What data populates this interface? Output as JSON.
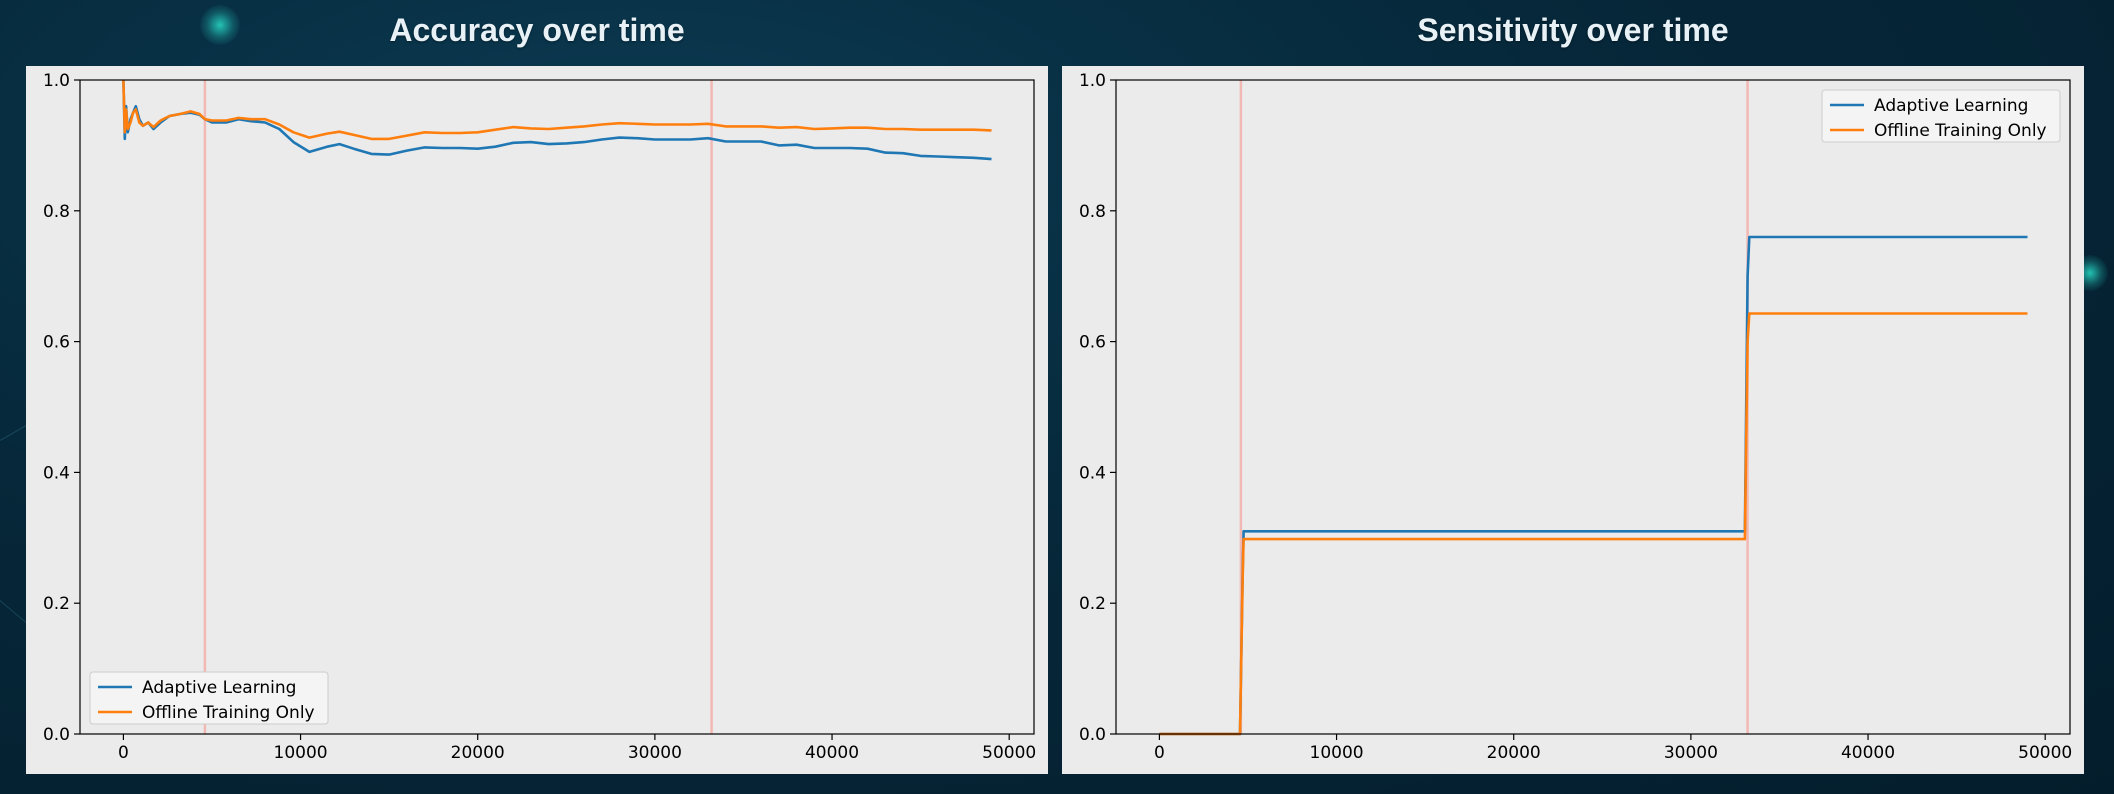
{
  "chart_data": [
    {
      "type": "line",
      "title": "Accuracy over time",
      "xlim": [
        -2450,
        51400
      ],
      "ylim": [
        0,
        1.0
      ],
      "xticks": [
        0,
        10000,
        20000,
        30000,
        40000,
        50000
      ],
      "yticks": [
        0.0,
        0.2,
        0.4,
        0.6,
        0.8,
        1.0
      ],
      "vlines": [
        4600,
        33200
      ],
      "legend": "lower-left",
      "series": [
        {
          "name": "Adaptive Learning",
          "color": "#1f77b4",
          "x": [
            0,
            80,
            150,
            250,
            400,
            550,
            700,
            900,
            1100,
            1400,
            1700,
            2100,
            2600,
            3200,
            3800,
            4300,
            4600,
            5000,
            5800,
            6500,
            7200,
            8000,
            8800,
            9600,
            10500,
            11500,
            12200,
            13000,
            14000,
            15000,
            16000,
            17000,
            18000,
            19000,
            20000,
            21000,
            22000,
            23000,
            24000,
            25000,
            26000,
            27000,
            28000,
            29000,
            30000,
            31000,
            32000,
            33000,
            34000,
            35000,
            36000,
            37000,
            38000,
            39000,
            40000,
            41000,
            42000,
            43000,
            44000,
            45000,
            46000,
            47000,
            48000,
            49000
          ],
          "values": [
            1.0,
            0.91,
            0.96,
            0.92,
            0.94,
            0.95,
            0.96,
            0.94,
            0.93,
            0.935,
            0.925,
            0.935,
            0.945,
            0.948,
            0.95,
            0.947,
            0.94,
            0.935,
            0.935,
            0.94,
            0.937,
            0.935,
            0.925,
            0.905,
            0.89,
            0.898,
            0.902,
            0.895,
            0.887,
            0.886,
            0.892,
            0.897,
            0.896,
            0.896,
            0.895,
            0.898,
            0.904,
            0.905,
            0.902,
            0.903,
            0.905,
            0.909,
            0.912,
            0.911,
            0.909,
            0.909,
            0.909,
            0.911,
            0.906,
            0.906,
            0.906,
            0.9,
            0.901,
            0.896,
            0.896,
            0.896,
            0.895,
            0.889,
            0.888,
            0.884,
            0.883,
            0.882,
            0.881,
            0.879
          ]
        },
        {
          "name": "Offline Training Only",
          "color": "#ff7f0e",
          "x": [
            0,
            80,
            150,
            250,
            400,
            550,
            700,
            900,
            1100,
            1400,
            1700,
            2100,
            2600,
            3200,
            3800,
            4300,
            4600,
            5000,
            5800,
            6500,
            7200,
            8000,
            8800,
            9600,
            10500,
            11500,
            12200,
            13000,
            14000,
            15000,
            16000,
            17000,
            18000,
            19000,
            20000,
            21000,
            22000,
            23000,
            24000,
            25000,
            26000,
            27000,
            28000,
            29000,
            30000,
            31000,
            32000,
            33000,
            34000,
            35000,
            36000,
            37000,
            38000,
            39000,
            40000,
            41000,
            42000,
            43000,
            44000,
            45000,
            46000,
            47000,
            48000,
            49000
          ],
          "values": [
            1.0,
            0.92,
            0.955,
            0.925,
            0.935,
            0.95,
            0.955,
            0.935,
            0.93,
            0.935,
            0.928,
            0.938,
            0.945,
            0.948,
            0.952,
            0.948,
            0.94,
            0.938,
            0.938,
            0.942,
            0.94,
            0.94,
            0.932,
            0.92,
            0.912,
            0.918,
            0.921,
            0.916,
            0.91,
            0.91,
            0.915,
            0.92,
            0.919,
            0.919,
            0.92,
            0.924,
            0.928,
            0.926,
            0.925,
            0.927,
            0.929,
            0.932,
            0.934,
            0.933,
            0.932,
            0.932,
            0.932,
            0.933,
            0.929,
            0.929,
            0.929,
            0.927,
            0.928,
            0.925,
            0.926,
            0.927,
            0.927,
            0.925,
            0.925,
            0.924,
            0.924,
            0.924,
            0.924,
            0.923
          ]
        }
      ]
    },
    {
      "type": "line",
      "title": "Sensitivity over time",
      "xlim": [
        -2450,
        51400
      ],
      "ylim": [
        0,
        1.0
      ],
      "xticks": [
        0,
        10000,
        20000,
        30000,
        40000,
        50000
      ],
      "yticks": [
        0.0,
        0.2,
        0.4,
        0.6,
        0.8,
        1.0
      ],
      "vlines": [
        4600,
        33200
      ],
      "legend": "upper-right",
      "series": [
        {
          "name": "Adaptive Learning",
          "color": "#1f77b4",
          "x": [
            0,
            4550,
            4620,
            4700,
            4750,
            33050,
            33120,
            33200,
            33300,
            49000
          ],
          "values": [
            0.0,
            0.0,
            0.12,
            0.25,
            0.31,
            0.31,
            0.5,
            0.7,
            0.76,
            0.76
          ]
        },
        {
          "name": "Offline Training Only",
          "color": "#ff7f0e",
          "x": [
            0,
            4550,
            4620,
            4700,
            4750,
            33050,
            33120,
            33200,
            33300,
            49000
          ],
          "values": [
            0.0,
            0.0,
            0.12,
            0.24,
            0.298,
            0.298,
            0.45,
            0.6,
            0.643,
            0.643
          ]
        }
      ]
    }
  ]
}
